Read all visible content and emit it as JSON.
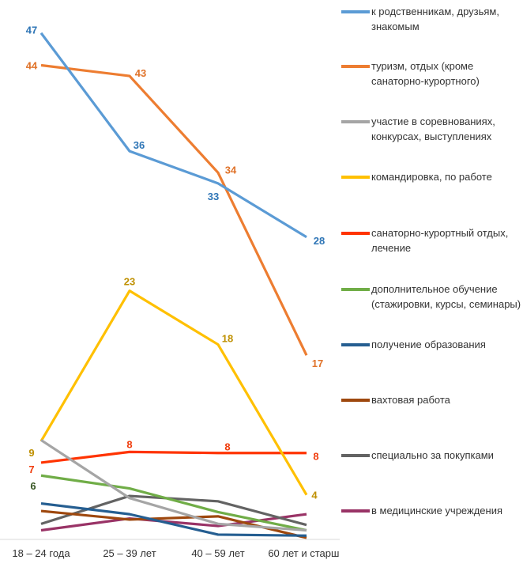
{
  "chart_data": {
    "type": "line",
    "categories": [
      "18 – 24 года",
      "25 – 39 лет",
      "40 – 59 лет",
      "60 лет и старше"
    ],
    "ylim": [
      0,
      47
    ],
    "grid": false,
    "legend_position": "right",
    "series": [
      {
        "name": "к родственникам, друзьям, знакомым",
        "color": "#5b9bd5",
        "label_color": "#2e75b6",
        "values": [
          47,
          36,
          33,
          28
        ],
        "labels": [
          "47",
          "36",
          "33",
          "28"
        ]
      },
      {
        "name": "туризм, отдых (кроме санаторно-курортного)",
        "color": "#ed7d31",
        "label_color": "#e0732a",
        "values": [
          44,
          43,
          34,
          17
        ],
        "labels": [
          "44",
          "43",
          "34",
          "17"
        ]
      },
      {
        "name": "участие в соревнованиях, конкурсах, выступлениях",
        "color": "#a5a5a5",
        "label_color": "#888888",
        "values": [
          9.1,
          3.7,
          1.3,
          0.7
        ],
        "labels": [
          "",
          "",
          "",
          ""
        ]
      },
      {
        "name": "командировка, по работе",
        "color": "#ffc000",
        "label_color": "#bf9000",
        "values": [
          9,
          23,
          18,
          4
        ],
        "labels": [
          "9",
          "23",
          "18",
          "4"
        ]
      },
      {
        "name": "санаторно-курортный отдых, лечение",
        "color": "#ff3300",
        "label_color": "#f03c0c",
        "values": [
          7,
          8,
          7.9,
          7.9
        ],
        "labels": [
          "7",
          "8",
          "8",
          "8"
        ]
      },
      {
        "name": "дополнительное обучение (стажировки, курсы, семинары)",
        "color": "#70ad47",
        "label_color": "#375623",
        "values": [
          5.8,
          4.6,
          2.4,
          0.7
        ],
        "labels": [
          "6",
          "",
          "",
          ""
        ]
      },
      {
        "name": "получение образования",
        "color": "#255e91",
        "label_color": "#255e91",
        "values": [
          3.2,
          2.2,
          0.3,
          0.2
        ],
        "labels": [
          "",
          "",
          "",
          ""
        ]
      },
      {
        "name": "вахтовая работа",
        "color": "#9e480e",
        "label_color": "#9e480e",
        "values": [
          2.5,
          1.7,
          2.0,
          0
        ],
        "labels": [
          "",
          "",
          "",
          ""
        ]
      },
      {
        "name": "специально за покупками",
        "color": "#636363",
        "label_color": "#636363",
        "values": [
          1.3,
          3.9,
          3.4,
          1.2
        ],
        "labels": [
          "",
          "",
          "",
          ""
        ]
      },
      {
        "name": "в медицинские учреждения",
        "color": "#993366",
        "label_color": "#993366",
        "values": [
          0.7,
          1.8,
          1.1,
          2.2
        ],
        "labels": [
          "",
          "",
          "",
          ""
        ]
      }
    ]
  }
}
